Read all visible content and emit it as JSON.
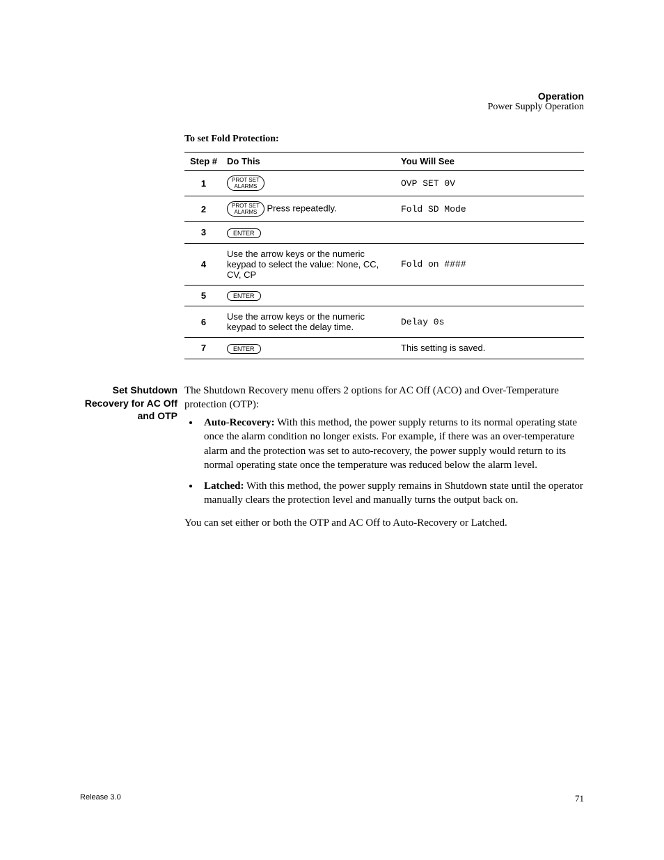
{
  "running_head": {
    "chapter": "Operation",
    "section": "Power Supply Operation"
  },
  "procedure": {
    "heading": "To set Fold Protection:",
    "columns": {
      "step": "Step #",
      "do": "Do This",
      "see": "You Will See"
    },
    "key_labels": {
      "prot_set_l1": "PROT SET",
      "prot_set_l2": "ALARMS",
      "enter": "ENTER"
    },
    "rows": [
      {
        "n": "1",
        "do_type": "key_protset",
        "do_text": "",
        "see": "OVP SET 0V",
        "see_mono": true
      },
      {
        "n": "2",
        "do_type": "key_protset",
        "do_text": " Press repeatedly.",
        "see": "Fold SD Mode",
        "see_mono": true
      },
      {
        "n": "3",
        "do_type": "key_enter",
        "do_text": "",
        "see": "",
        "see_mono": false
      },
      {
        "n": "4",
        "do_type": "text",
        "do_text": "Use the arrow keys or the numeric keypad to select the value: None, CC, CV, CP",
        "see": "Fold on ####",
        "see_mono": true
      },
      {
        "n": "5",
        "do_type": "key_enter",
        "do_text": "",
        "see": "",
        "see_mono": false
      },
      {
        "n": "6",
        "do_type": "text",
        "do_text": "Use the arrow keys or the numeric keypad to select the delay time.",
        "see": "Delay 0s",
        "see_mono": true
      },
      {
        "n": "7",
        "do_type": "key_enter",
        "do_text": "",
        "see": "This setting is saved.",
        "see_mono": false
      }
    ]
  },
  "margin_section": {
    "heading": "Set Shutdown Recovery for AC Off and OTP",
    "intro": "The Shutdown Recovery menu offers 2 options for AC Off (ACO) and Over-Temperature protection (OTP):",
    "bullets": [
      {
        "label": "Auto-Recovery:",
        "text": " With this method, the power supply returns to its normal operating state once the alarm condition no longer exists. For example, if there was an over-temperature alarm and the protection was set to auto-recovery, the power supply would return to its normal operating state once the temperature was reduced below the alarm level."
      },
      {
        "label": "Latched:",
        "text": " With this method, the power supply remains in Shutdown state until the operator manually clears the protection level and manually turns the output back on."
      }
    ],
    "closing": "You can set either or both the OTP and AC Off to Auto-Recovery or Latched."
  },
  "footer": {
    "release": "Release 3.0",
    "page": "71"
  }
}
